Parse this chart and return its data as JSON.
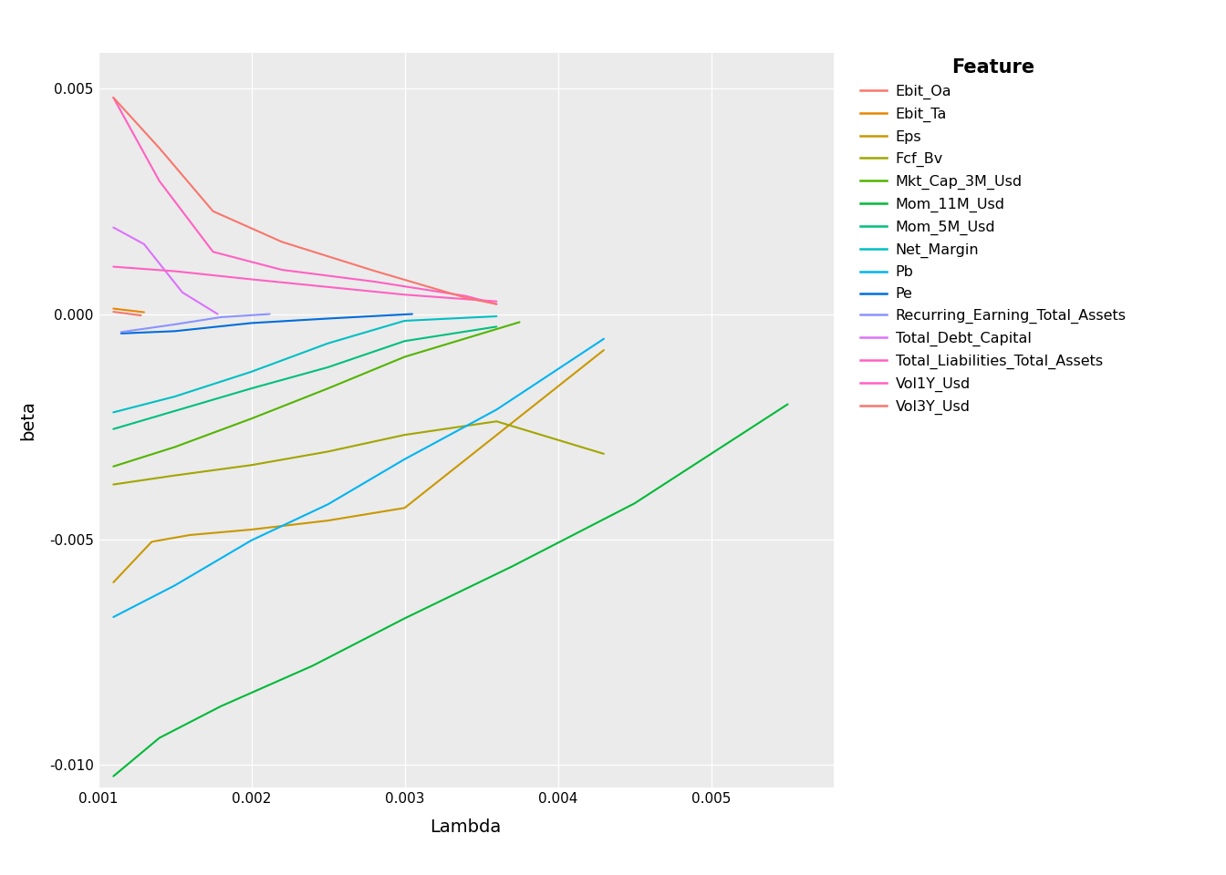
{
  "xlabel": "Lambda",
  "ylabel": "beta",
  "background_color": "#EBEBEB",
  "xlim": [
    0.001,
    0.0058
  ],
  "ylim": [
    -0.0105,
    0.0058
  ],
  "xticks": [
    0.001,
    0.002,
    0.003,
    0.004,
    0.005
  ],
  "yticks": [
    -0.01,
    -0.005,
    0.0,
    0.005
  ],
  "series": {
    "Ebit_Oa": {
      "color": "#F8766D",
      "x": [
        0.0011,
        0.00128
      ],
      "y": [
        5e-05,
        -3e-05
      ]
    },
    "Ebit_Ta": {
      "color": "#E58700",
      "x": [
        0.0011,
        0.0013
      ],
      "y": [
        0.00012,
        4e-05
      ]
    },
    "Eps": {
      "color": "#C99800",
      "x": [
        0.0011,
        0.00135,
        0.0016,
        0.002,
        0.0025,
        0.003,
        0.0043
      ],
      "y": [
        -0.00595,
        -0.00505,
        -0.0049,
        -0.00478,
        -0.00458,
        -0.0043,
        -0.0008
      ]
    },
    "Fcf_Bv": {
      "color": "#A3A500",
      "x": [
        0.0011,
        0.0015,
        0.002,
        0.0025,
        0.003,
        0.0036,
        0.0043
      ],
      "y": [
        -0.00378,
        -0.00358,
        -0.00335,
        -0.00305,
        -0.00268,
        -0.00238,
        -0.0031
      ]
    },
    "Mkt_Cap_3M_Usd": {
      "color": "#53B400",
      "x": [
        0.0011,
        0.0015,
        0.002,
        0.0025,
        0.003,
        0.00375
      ],
      "y": [
        -0.00338,
        -0.00295,
        -0.00232,
        -0.00165,
        -0.00095,
        -0.00018
      ]
    },
    "Mom_11M_Usd": {
      "color": "#00B938",
      "x": [
        0.0011,
        0.0014,
        0.0018,
        0.0024,
        0.003,
        0.0037,
        0.0045,
        0.0055
      ],
      "y": [
        -0.01025,
        -0.0094,
        -0.0087,
        -0.0078,
        -0.00675,
        -0.0056,
        -0.0042,
        -0.002
      ]
    },
    "Mom_5M_Usd": {
      "color": "#00BF7D",
      "x": [
        0.0011,
        0.0015,
        0.002,
        0.0025,
        0.003,
        0.0036
      ],
      "y": [
        -0.00255,
        -0.00215,
        -0.00165,
        -0.00118,
        -0.0006,
        -0.00028
      ]
    },
    "Net_Margin": {
      "color": "#00BFC4",
      "x": [
        0.0011,
        0.0015,
        0.002,
        0.0025,
        0.003,
        0.0036
      ],
      "y": [
        -0.00218,
        -0.00183,
        -0.00128,
        -0.00065,
        -0.00015,
        -5e-05
      ]
    },
    "Pb": {
      "color": "#00B4F0",
      "x": [
        0.0011,
        0.0015,
        0.002,
        0.0025,
        0.003,
        0.0036,
        0.0043
      ],
      "y": [
        -0.00672,
        -0.00602,
        -0.00502,
        -0.00422,
        -0.00322,
        -0.00212,
        -0.00055
      ]
    },
    "Pe": {
      "color": "#006DDB",
      "x": [
        0.00115,
        0.0015,
        0.002,
        0.0025,
        0.00305
      ],
      "y": [
        -0.00043,
        -0.00038,
        -0.0002,
        -0.0001,
        0.0
      ]
    },
    "Recurring_Earning_Total_Assets": {
      "color": "#8B93FF",
      "x": [
        0.00115,
        0.0015,
        0.0018,
        0.00212
      ],
      "y": [
        -0.0004,
        -0.00023,
        -7e-05,
        0.0
      ]
    },
    "Total_Debt_Capital": {
      "color": "#DB72FB",
      "x": [
        0.0011,
        0.0013,
        0.00155,
        0.00178
      ],
      "y": [
        0.00192,
        0.00155,
        0.00048,
        0.0
      ]
    },
    "Total_Liabilities_Total_Assets": {
      "color": "#FF61C3",
      "x": [
        0.0011,
        0.0015,
        0.002,
        0.0025,
        0.003,
        0.0036
      ],
      "y": [
        0.00105,
        0.00095,
        0.00077,
        0.0006,
        0.00043,
        0.00028
      ]
    },
    "Vol1Y_Usd": {
      "color": "#FF61C3",
      "x": [
        0.0011,
        0.0014,
        0.00175,
        0.0022,
        0.0028,
        0.0034,
        0.0036
      ],
      "y": [
        0.0048,
        0.00295,
        0.00138,
        0.00098,
        0.00072,
        0.0004,
        0.00022
      ]
    },
    "Vol3Y_Usd": {
      "color": "#F8766D",
      "x": [
        0.0011,
        0.0014,
        0.00175,
        0.0022,
        0.0028,
        0.0034,
        0.0036
      ],
      "y": [
        0.0048,
        0.00368,
        0.00228,
        0.0016,
        0.00096,
        0.00036,
        0.00022
      ]
    }
  },
  "legend_order": [
    "Ebit_Oa",
    "Ebit_Ta",
    "Eps",
    "Fcf_Bv",
    "Mkt_Cap_3M_Usd",
    "Mom_11M_Usd",
    "Mom_5M_Usd",
    "Net_Margin",
    "Pb",
    "Pe",
    "Recurring_Earning_Total_Assets",
    "Total_Debt_Capital",
    "Total_Liabilities_Total_Assets",
    "Vol1Y_Usd",
    "Vol3Y_Usd"
  ],
  "legend_colors": [
    "#F8766D",
    "#E58700",
    "#C99800",
    "#A3A500",
    "#53B400",
    "#00B938",
    "#00BF7D",
    "#00BFC4",
    "#00B4F0",
    "#006DDB",
    "#8B93FF",
    "#DB72FB",
    "#FF61C3",
    "#FF61C3",
    "#F8766D"
  ]
}
